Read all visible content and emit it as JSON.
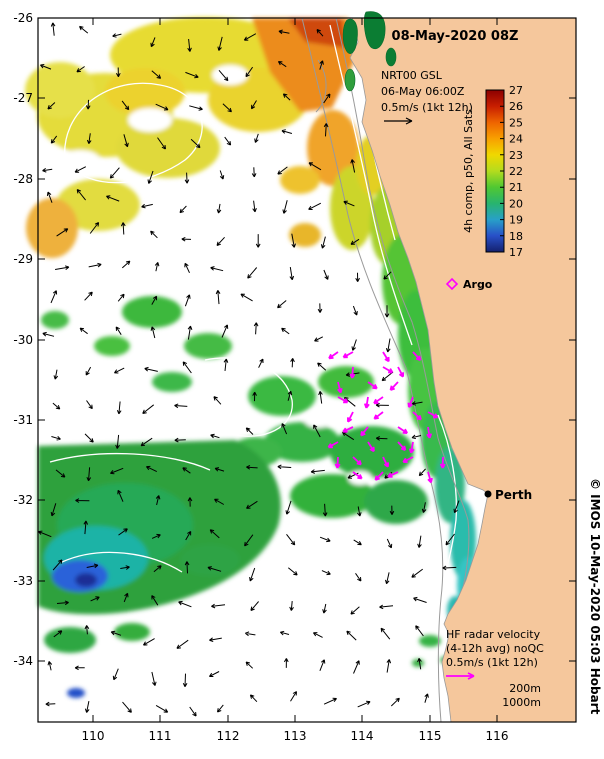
{
  "colors": {
    "land": "#f5c79c",
    "gsl_arrow": "#000000",
    "hf_arrow": "#ff00ff",
    "argo_marker": "#ff00ff",
    "colorbar_label_text": "#2222aa",
    "bathymetry_line": "#9a9a9a",
    "sst_contour_line": "#ffffff"
  },
  "map": {
    "datetime_label": "08-May-2020 08Z",
    "gsl_legend": {
      "product": "NRT00 GSL",
      "time": "06-May 06:00Z",
      "scale": "0.5m/s (1kt 12h)"
    },
    "hf_legend": {
      "title": "HF radar velocity",
      "subtitle": "(4-12h avg) noQC",
      "scale": "0.5m/s (1kt 12h)"
    },
    "depth_labels": {
      "shallow": "200m",
      "deep": "1000m"
    },
    "markers": {
      "argo": "Argo",
      "perth": "Perth"
    },
    "copyright": "© IMOS 10-May-2020 05:03 Hobart"
  },
  "colorbar": {
    "label": "4h comp, p50, All Sats",
    "ticks": [
      "27",
      "26",
      "25",
      "24",
      "23",
      "22",
      "21",
      "20",
      "19",
      "18",
      "17"
    ],
    "gradient_top_to_bottom": [
      "#8c0000",
      "#c81e00",
      "#ee6400",
      "#f8a000",
      "#f0d800",
      "#b4dc1e",
      "#50c832",
      "#28b46e",
      "#28a0c8",
      "#2850c8",
      "#14206e"
    ]
  },
  "axes": {
    "x_ticks": [
      "110",
      "111",
      "112",
      "113",
      "114",
      "115",
      "116"
    ],
    "y_ticks": [
      "-26",
      "-27",
      "-28",
      "-29",
      "-30",
      "-31",
      "-32",
      "-33",
      "-34"
    ]
  },
  "map_data": {
    "type": "sea_surface_temperature_map",
    "x_axis": "longitude_deg_east",
    "y_axis": "latitude_deg",
    "lon_range": [
      109.2,
      117.2
    ],
    "lat_range": [
      -34.8,
      -26.0
    ],
    "sst_scale_c": [
      17,
      27
    ],
    "overlays": [
      "GSL velocity arrows",
      "HF radar velocity arrows",
      "200m and 1000m isobaths",
      "SST contours",
      "Argo float position",
      "Perth marker"
    ]
  }
}
